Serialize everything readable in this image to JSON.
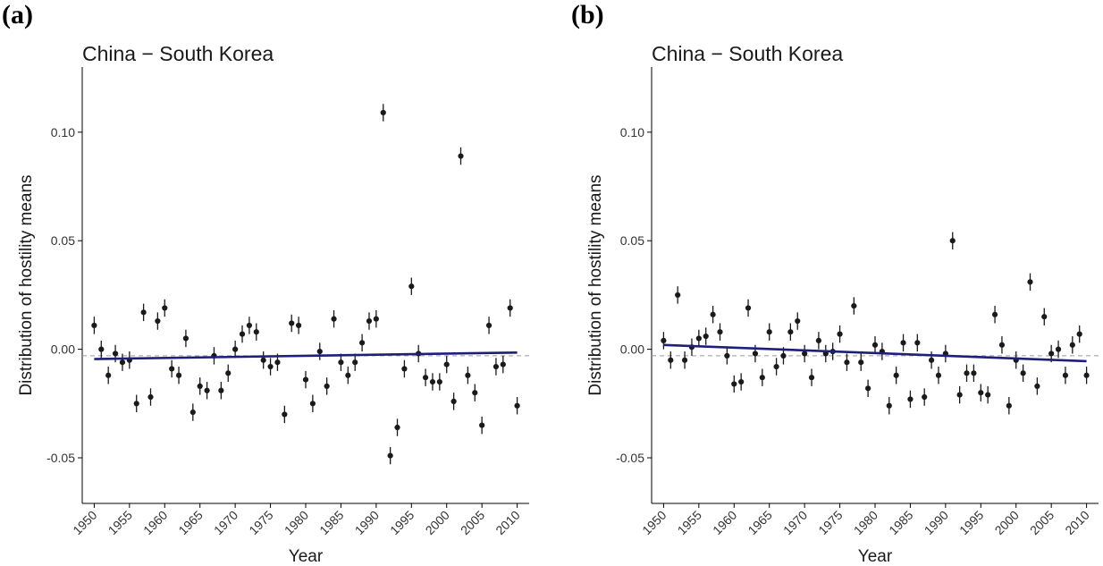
{
  "chart_data": [
    {
      "type": "scatter",
      "panel_label": "(a)",
      "title": "China − South Korea",
      "xlabel": "Year",
      "ylabel": "Distribution of hostility means",
      "xlim": [
        1948.3,
        2011.7
      ],
      "ylim": [
        -0.071,
        0.13
      ],
      "xticks": [
        "1950",
        "1955",
        "1960",
        "1965",
        "1970",
        "1975",
        "1980",
        "1985",
        "1990",
        "1995",
        "2000",
        "2005",
        "2010"
      ],
      "yticks": [
        "-0.05",
        "0.00",
        "0.05",
        "0.10"
      ],
      "reference_line": -0.003,
      "trend": {
        "x": [
          1950,
          2010
        ],
        "y": [
          -0.0045,
          -0.0015
        ]
      },
      "colors": {
        "points": "#1a1a1a",
        "trend": "#1f1f7a",
        "reference": "#9a9a9a"
      },
      "grid": false,
      "x": [
        1950,
        1951,
        1952,
        1953,
        1954,
        1955,
        1956,
        1957,
        1958,
        1959,
        1960,
        1961,
        1962,
        1963,
        1964,
        1965,
        1966,
        1967,
        1968,
        1969,
        1970,
        1971,
        1972,
        1973,
        1974,
        1975,
        1976,
        1977,
        1978,
        1979,
        1980,
        1981,
        1982,
        1983,
        1984,
        1985,
        1986,
        1987,
        1988,
        1989,
        1990,
        1991,
        1992,
        1993,
        1994,
        1995,
        1996,
        1997,
        1998,
        1999,
        2000,
        2001,
        2002,
        2003,
        2004,
        2005,
        2006,
        2007,
        2008,
        2009,
        2010
      ],
      "y": [
        0.011,
        0.0,
        -0.012,
        -0.002,
        -0.006,
        -0.005,
        -0.025,
        0.017,
        -0.022,
        0.013,
        0.019,
        -0.009,
        -0.012,
        0.005,
        -0.029,
        -0.017,
        -0.019,
        -0.003,
        -0.019,
        -0.011,
        0.0,
        0.007,
        0.011,
        0.008,
        -0.005,
        -0.008,
        -0.006,
        -0.03,
        0.012,
        0.011,
        -0.014,
        -0.025,
        -0.001,
        -0.017,
        0.014,
        -0.006,
        -0.012,
        -0.006,
        0.003,
        0.013,
        0.014,
        0.109,
        -0.049,
        -0.036,
        -0.009,
        0.029,
        -0.002,
        -0.013,
        -0.015,
        -0.015,
        -0.007,
        -0.024,
        0.089,
        -0.012,
        -0.02,
        -0.035,
        0.011,
        -0.008,
        -0.007,
        0.019,
        -0.026
      ],
      "error_half_width": 0.004
    },
    {
      "type": "scatter",
      "panel_label": "(b)",
      "title": "China − South Korea",
      "xlabel": "Year",
      "ylabel": "Distribution of hostility means",
      "xlim": [
        1948.3,
        2011.7
      ],
      "ylim": [
        -0.071,
        0.13
      ],
      "xticks": [
        "1950",
        "1955",
        "1960",
        "1965",
        "1970",
        "1975",
        "1980",
        "1985",
        "1990",
        "1995",
        "2000",
        "2005",
        "2010"
      ],
      "yticks": [
        "-0.05",
        "0.00",
        "0.05",
        "0.10"
      ],
      "reference_line": -0.003,
      "trend": {
        "x": [
          1950,
          2010
        ],
        "y": [
          0.002,
          -0.0055
        ]
      },
      "colors": {
        "points": "#1a1a1a",
        "trend": "#1f1f7a",
        "reference": "#9a9a9a"
      },
      "grid": false,
      "x": [
        1950,
        1951,
        1952,
        1953,
        1954,
        1955,
        1956,
        1957,
        1958,
        1959,
        1960,
        1961,
        1962,
        1963,
        1964,
        1965,
        1966,
        1967,
        1968,
        1969,
        1970,
        1971,
        1972,
        1973,
        1974,
        1975,
        1976,
        1977,
        1978,
        1979,
        1980,
        1981,
        1982,
        1983,
        1984,
        1985,
        1986,
        1987,
        1988,
        1989,
        1990,
        1991,
        1992,
        1993,
        1994,
        1995,
        1996,
        1997,
        1998,
        1999,
        2000,
        2001,
        2002,
        2003,
        2004,
        2005,
        2006,
        2007,
        2008,
        2009,
        2010
      ],
      "y": [
        0.004,
        -0.005,
        0.025,
        -0.005,
        0.001,
        0.005,
        0.006,
        0.016,
        0.008,
        -0.003,
        -0.016,
        -0.015,
        0.019,
        -0.002,
        -0.013,
        0.008,
        -0.008,
        -0.003,
        0.008,
        0.013,
        -0.002,
        -0.013,
        0.004,
        -0.002,
        -0.001,
        0.007,
        -0.006,
        0.02,
        -0.006,
        -0.018,
        0.002,
        -0.001,
        -0.026,
        -0.012,
        0.003,
        -0.023,
        0.003,
        -0.022,
        -0.005,
        -0.012,
        -0.002,
        0.05,
        -0.021,
        -0.011,
        -0.011,
        -0.02,
        -0.021,
        0.016,
        0.002,
        -0.026,
        -0.005,
        -0.011,
        0.031,
        -0.017,
        0.015,
        -0.002,
        0.0,
        -0.012,
        0.002,
        0.007,
        -0.012
      ],
      "error_half_width": 0.004
    }
  ]
}
